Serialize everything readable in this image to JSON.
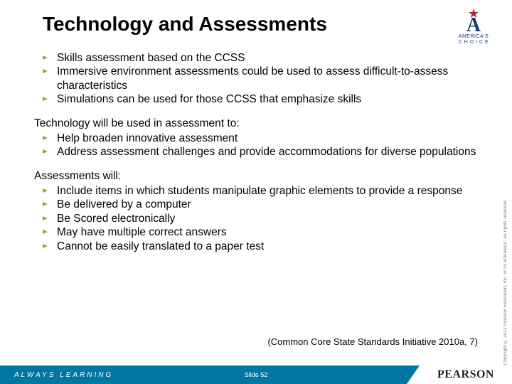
{
  "title": "Technology and Assessments",
  "blocks": [
    {
      "lead": null,
      "items": [
        "Skills assessment based on the CCSS",
        "Immersive environment assessments could be used to assess difficult-to-assess characteristics",
        "Simulations can be used for those CCSS that emphasize skills"
      ]
    },
    {
      "lead": "Technology will be used in assessment to:",
      "items": [
        "Help broaden innovative assessment",
        "Address assessment challenges and provide accommodations for diverse populations"
      ]
    },
    {
      "lead": "Assessments will:",
      "items": [
        "Include items in which students manipulate graphic elements to provide a response",
        "Be delivered by a computer",
        "Be Scored electronically",
        "May have multiple correct answers",
        "Cannot be easily translated to a paper test"
      ]
    }
  ],
  "citation": "(Common Core State Standards Initiative 2010a, 7)",
  "vertical_copyright": "Copyright © 2012 Pearson Education, Inc. or its affiliate(s). All rights reserved.",
  "logo_ac": {
    "top": "AMERICA'S",
    "bottom": "C H O I C E"
  },
  "footer": {
    "always": "ALWAYS LEARNING",
    "slide_label": "Slide 52",
    "pearson": "PEARSON"
  },
  "colors": {
    "bullet": "#9aa33a",
    "footer_bg": "#0076a3",
    "ac_blue": "#1a3a6e",
    "ac_red": "#b22234"
  }
}
